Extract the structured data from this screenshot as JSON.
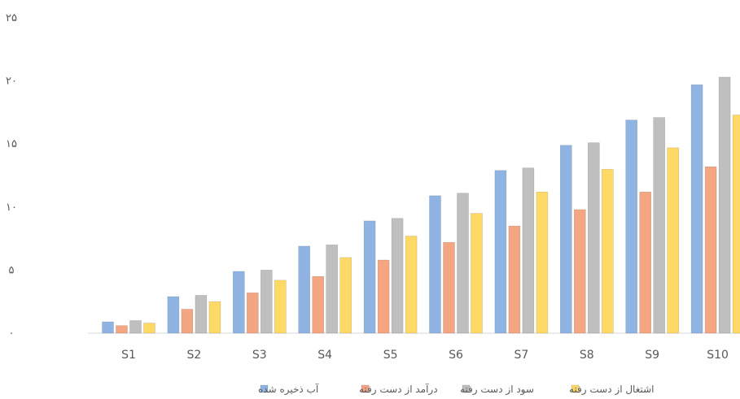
{
  "chart_data": {
    "type": "bar",
    "categories": [
      "S1",
      "S2",
      "S3",
      "S4",
      "S5",
      "S6",
      "S7",
      "S8",
      "S9",
      "S10"
    ],
    "y_ticks": [
      "۰",
      "۵",
      "۱۰",
      "۱۵",
      "۲۰",
      "۲۵"
    ],
    "ylim": [
      0,
      25
    ],
    "grid": false,
    "legend_position": "bottom",
    "series": [
      {
        "name": "آب ذخیره شده",
        "color": "#8fb4e3",
        "values": [
          0.9,
          2.9,
          4.9,
          6.9,
          8.9,
          10.9,
          12.9,
          14.9,
          16.9,
          19.7
        ]
      },
      {
        "name": "درآمد از دست رفته",
        "color": "#f4a582",
        "values": [
          0.6,
          1.9,
          3.2,
          4.5,
          5.8,
          7.2,
          8.5,
          9.8,
          11.2,
          13.2
        ]
      },
      {
        "name": "سود از دست رفته",
        "color": "#bfbfbf",
        "values": [
          1.0,
          3.0,
          5.0,
          7.0,
          9.1,
          11.1,
          13.1,
          15.1,
          17.1,
          20.3
        ]
      },
      {
        "name": "اشتغال از دست رفته",
        "color": "#ffd966",
        "values": [
          0.8,
          2.5,
          4.2,
          6.0,
          7.7,
          9.5,
          11.2,
          13.0,
          14.7,
          17.3
        ]
      }
    ]
  }
}
